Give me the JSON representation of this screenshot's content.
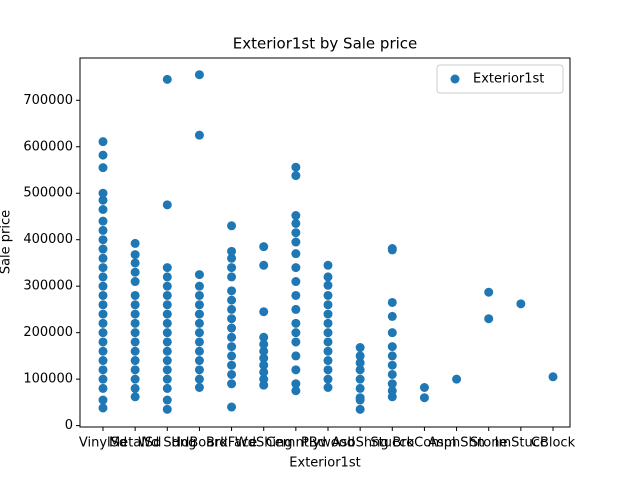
{
  "chart_data": {
    "type": "scatter",
    "title": "Exterior1st by Sale price",
    "x_label": "Exterior1st",
    "y_label": "Sale price",
    "categories": [
      "VinylSd",
      "MetalSd",
      "Wd Sdng",
      "HdBoard",
      "BrkFace",
      "WdShing",
      "CemntBd",
      "Plywood",
      "AsbShng",
      "Stucco",
      "BrkComm",
      "AsphShn",
      "Stone",
      "ImStucc",
      "CBlock"
    ],
    "ylim": [
      -3000,
      791000
    ],
    "yticks": [
      0,
      100000,
      200000,
      300000,
      400000,
      500000,
      600000,
      700000
    ],
    "legend": "upper right",
    "grid": false,
    "series": [
      {
        "name": "Exterior1st",
        "color": "#1f77b4",
        "x": [
          "VinylSd",
          "VinylSd",
          "VinylSd",
          "VinylSd",
          "VinylSd",
          "VinylSd",
          "VinylSd",
          "VinylSd",
          "VinylSd",
          "VinylSd",
          "VinylSd",
          "VinylSd",
          "VinylSd",
          "VinylSd",
          "VinylSd",
          "VinylSd",
          "VinylSd",
          "VinylSd",
          "VinylSd",
          "VinylSd",
          "VinylSd",
          "VinylSd",
          "VinylSd",
          "VinylSd",
          "VinylSd",
          "VinylSd",
          "VinylSd",
          "MetalSd",
          "MetalSd",
          "MetalSd",
          "MetalSd",
          "MetalSd",
          "MetalSd",
          "MetalSd",
          "MetalSd",
          "MetalSd",
          "MetalSd",
          "MetalSd",
          "MetalSd",
          "MetalSd",
          "MetalSd",
          "MetalSd",
          "MetalSd",
          "MetalSd",
          "Wd Sdng",
          "Wd Sdng",
          "Wd Sdng",
          "Wd Sdng",
          "Wd Sdng",
          "Wd Sdng",
          "Wd Sdng",
          "Wd Sdng",
          "Wd Sdng",
          "Wd Sdng",
          "Wd Sdng",
          "Wd Sdng",
          "Wd Sdng",
          "Wd Sdng",
          "Wd Sdng",
          "Wd Sdng",
          "Wd Sdng",
          "Wd Sdng",
          "HdBoard",
          "HdBoard",
          "HdBoard",
          "HdBoard",
          "HdBoard",
          "HdBoard",
          "HdBoard",
          "HdBoard",
          "HdBoard",
          "HdBoard",
          "HdBoard",
          "HdBoard",
          "HdBoard",
          "HdBoard",
          "HdBoard",
          "BrkFace",
          "BrkFace",
          "BrkFace",
          "BrkFace",
          "BrkFace",
          "BrkFace",
          "BrkFace",
          "BrkFace",
          "BrkFace",
          "BrkFace",
          "BrkFace",
          "BrkFace",
          "BrkFace",
          "BrkFace",
          "BrkFace",
          "BrkFace",
          "BrkFace",
          "WdShing",
          "WdShing",
          "WdShing",
          "WdShing",
          "WdShing",
          "WdShing",
          "WdShing",
          "WdShing",
          "WdShing",
          "WdShing",
          "WdShing",
          "CemntBd",
          "CemntBd",
          "CemntBd",
          "CemntBd",
          "CemntBd",
          "CemntBd",
          "CemntBd",
          "CemntBd",
          "CemntBd",
          "CemntBd",
          "CemntBd",
          "CemntBd",
          "CemntBd",
          "CemntBd",
          "CemntBd",
          "CemntBd",
          "CemntBd",
          "CemntBd",
          "Plywood",
          "Plywood",
          "Plywood",
          "Plywood",
          "Plywood",
          "Plywood",
          "Plywood",
          "Plywood",
          "Plywood",
          "Plywood",
          "Plywood",
          "Plywood",
          "Plywood",
          "Plywood",
          "AsbShng",
          "AsbShng",
          "AsbShng",
          "AsbShng",
          "AsbShng",
          "AsbShng",
          "AsbShng",
          "AsbShng",
          "AsbShng",
          "Stucco",
          "Stucco",
          "Stucco",
          "Stucco",
          "Stucco",
          "Stucco",
          "Stucco",
          "Stucco",
          "Stucco",
          "Stucco",
          "Stucco",
          "Stucco",
          "BrkComm",
          "BrkComm",
          "AsphShn",
          "Stone",
          "Stone",
          "ImStucc",
          "CBlock"
        ],
        "values": [
          38000,
          55000,
          80000,
          100000,
          120000,
          140000,
          160000,
          180000,
          200000,
          220000,
          240000,
          260000,
          280000,
          300000,
          320000,
          340000,
          360000,
          380000,
          400000,
          420000,
          440000,
          465000,
          485000,
          500000,
          555000,
          582000,
          611000,
          62000,
          80000,
          100000,
          120000,
          140000,
          160000,
          180000,
          200000,
          220000,
          240000,
          260000,
          280000,
          310000,
          330000,
          350000,
          368000,
          392000,
          35000,
          55000,
          80000,
          100000,
          120000,
          140000,
          160000,
          180000,
          200000,
          220000,
          240000,
          260000,
          280000,
          300000,
          320000,
          340000,
          475000,
          745000,
          82000,
          100000,
          120000,
          140000,
          160000,
          180000,
          200000,
          220000,
          240000,
          260000,
          280000,
          300000,
          325000,
          625000,
          755000,
          40000,
          90000,
          110000,
          130000,
          150000,
          170000,
          190000,
          210000,
          230000,
          250000,
          270000,
          290000,
          320000,
          340000,
          360000,
          375000,
          430000,
          87000,
          100000,
          115000,
          130000,
          145000,
          160000,
          175000,
          190000,
          245000,
          345000,
          385000,
          75000,
          90000,
          120000,
          150000,
          180000,
          200000,
          220000,
          250000,
          280000,
          310000,
          340000,
          370000,
          395000,
          415000,
          435000,
          452000,
          538000,
          556000,
          82000,
          100000,
          120000,
          140000,
          160000,
          180000,
          200000,
          220000,
          240000,
          260000,
          280000,
          302000,
          320000,
          345000,
          35000,
          55000,
          60000,
          80000,
          100000,
          120000,
          135000,
          150000,
          168000,
          62000,
          75000,
          90000,
          110000,
          130000,
          150000,
          170000,
          200000,
          235000,
          265000,
          378000,
          381000,
          60000,
          82000,
          100000,
          230000,
          287000,
          262000,
          105000
        ]
      }
    ]
  }
}
